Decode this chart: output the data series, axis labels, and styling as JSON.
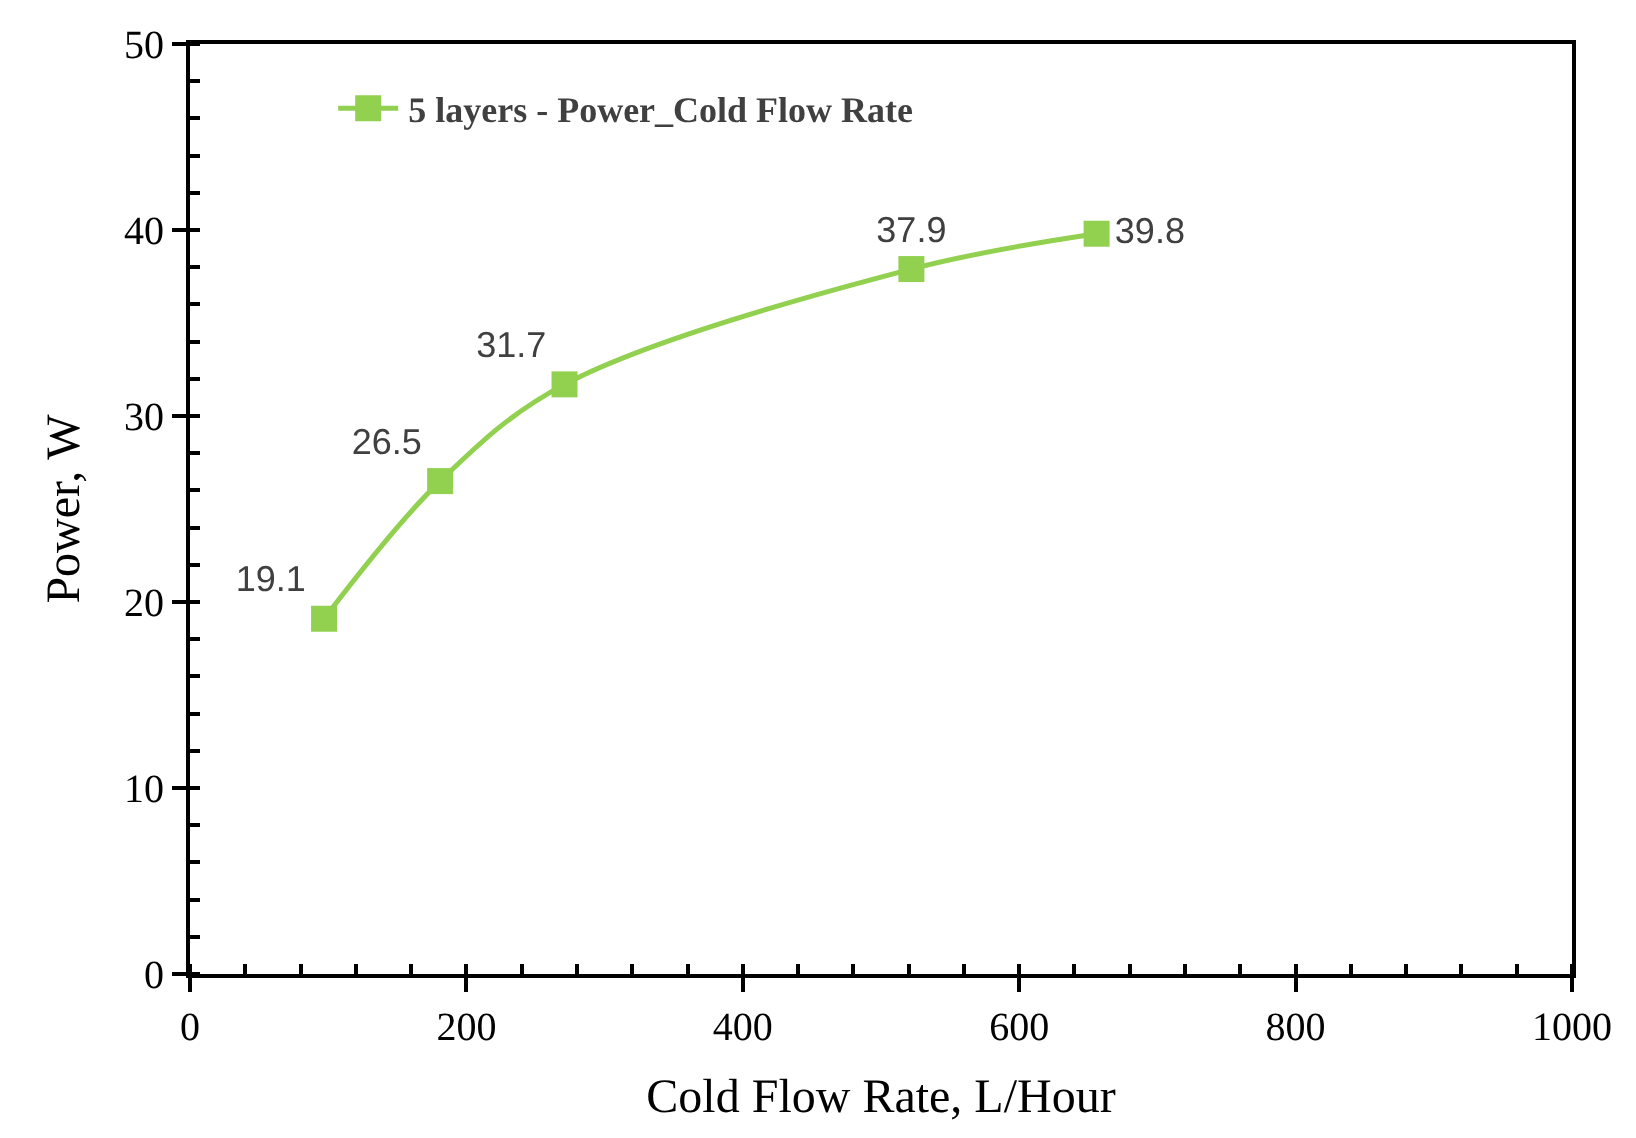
{
  "chart_data": {
    "type": "line",
    "xlabel": "Cold Flow Rate, L/Hour",
    "ylabel": "Power, W",
    "x": [
      97,
      181,
      271,
      522,
      656
    ],
    "series": [
      {
        "name": "5 layers - Power_Cold Flow Rate",
        "color": "#92d050",
        "values": [
          19.1,
          26.5,
          31.7,
          37.9,
          39.8
        ]
      }
    ],
    "xlim": [
      0,
      1000
    ],
    "xticks": [
      0,
      200,
      400,
      600,
      800,
      1000
    ],
    "ylim": [
      0,
      50
    ],
    "yticks": [
      0,
      10,
      20,
      30,
      40,
      50
    ],
    "legend": "top left",
    "marker": "square",
    "line_style": "solid",
    "data_labels": true
  }
}
